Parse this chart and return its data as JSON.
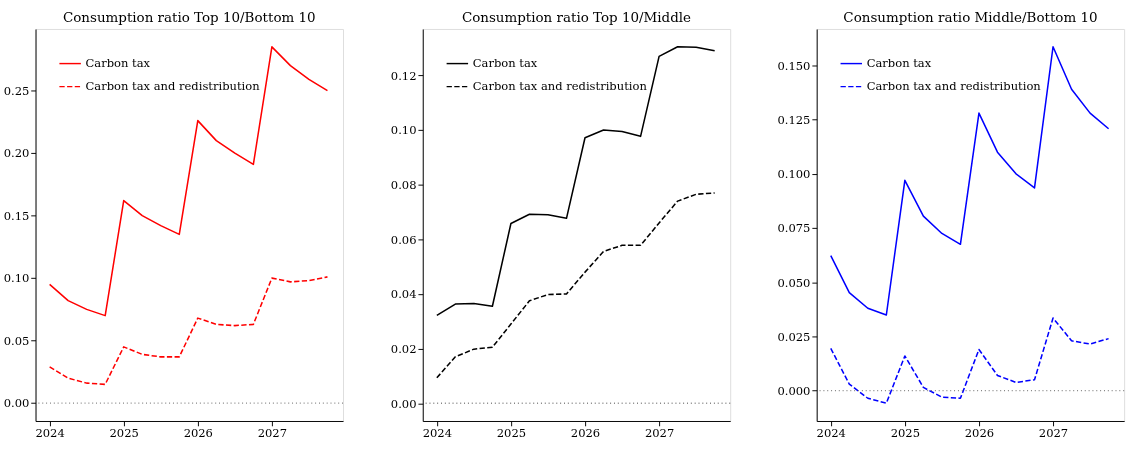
{
  "chart_data": [
    {
      "type": "line",
      "title": "Consumption ratio Top 10/Bottom 10",
      "legend": "top left",
      "x": [
        2024,
        2024.25,
        2024.5,
        2024.75,
        2025,
        2025.25,
        2025.5,
        2025.75,
        2026,
        2026.25,
        2026.5,
        2026.75,
        2027,
        2027.25,
        2027.5,
        2027.75
      ],
      "series": [
        {
          "name": "Carbon tax",
          "color": "#ff0000",
          "line_style": "solid",
          "values": [
            0.095,
            0.082,
            0.075,
            0.07,
            0.162,
            0.15,
            0.142,
            0.135,
            0.226,
            0.21,
            0.2,
            0.191,
            0.285,
            0.27,
            0.259,
            0.25
          ]
        },
        {
          "name": "Carbon tax and redistribution",
          "color": "#ff0000",
          "line_style": "dashed",
          "values": [
            0.029,
            0.02,
            0.016,
            0.015,
            0.045,
            0.039,
            0.037,
            0.037,
            0.068,
            0.063,
            0.062,
            0.063,
            0.1,
            0.097,
            0.098,
            0.101
          ]
        }
      ],
      "ref_lines": [
        {
          "axis": "y",
          "value": 0,
          "color": "#808080",
          "line_style": "dotted"
        }
      ],
      "xlim": [
        2023.81,
        2027.96
      ],
      "xticks": [
        2024,
        2025,
        2026,
        2027
      ],
      "ylim": [
        -0.0143,
        0.2993
      ],
      "yticks": [
        {
          "value": 0,
          "label": "0.00"
        },
        {
          "value": 0.05,
          "label": "0.05"
        },
        {
          "value": 0.1,
          "label": "0.10"
        },
        {
          "value": 0.15,
          "label": "0.15"
        },
        {
          "value": 0.2,
          "label": "0.20"
        },
        {
          "value": 0.25,
          "label": "0.25"
        }
      ]
    },
    {
      "type": "line",
      "title": "Consumption ratio Top 10/Middle",
      "legend": "top left",
      "x": [
        2024,
        2024.25,
        2024.5,
        2024.75,
        2025,
        2025.25,
        2025.5,
        2025.75,
        2026,
        2026.25,
        2026.5,
        2026.75,
        2027,
        2027.25,
        2027.5,
        2027.75
      ],
      "series": [
        {
          "name": "Carbon tax",
          "color": "#000000",
          "line_style": "solid",
          "values": [
            0.0322,
            0.0363,
            0.0365,
            0.0355,
            0.0658,
            0.0692,
            0.069,
            0.0677,
            0.0972,
            0.1,
            0.0995,
            0.0977,
            0.127,
            0.1305,
            0.1303,
            0.129
          ]
        },
        {
          "name": "Carbon tax and redistribution",
          "color": "#000000",
          "line_style": "dashed",
          "values": [
            0.0093,
            0.017,
            0.0198,
            0.0205,
            0.029,
            0.0375,
            0.0398,
            0.04,
            0.048,
            0.0556,
            0.0578,
            0.0578,
            0.066,
            0.074,
            0.0765,
            0.077
          ]
        }
      ],
      "ref_lines": [
        {
          "axis": "y",
          "value": 0,
          "color": "#808080",
          "line_style": "dotted"
        }
      ],
      "xlim": [
        2023.81,
        2027.96
      ],
      "xticks": [
        2024,
        2025,
        2026,
        2027
      ],
      "ylim": [
        -0.0065,
        0.137
      ],
      "yticks": [
        {
          "value": 0,
          "label": "0.00"
        },
        {
          "value": 0.02,
          "label": "0.02"
        },
        {
          "value": 0.04,
          "label": "0.04"
        },
        {
          "value": 0.06,
          "label": "0.06"
        },
        {
          "value": 0.08,
          "label": "0.08"
        },
        {
          "value": 0.1,
          "label": "0.10"
        },
        {
          "value": 0.12,
          "label": "0.12"
        }
      ]
    },
    {
      "type": "line",
      "title": "Consumption ratio Middle/Bottom 10",
      "legend": "top left",
      "x": [
        2024,
        2024.25,
        2024.5,
        2024.75,
        2025,
        2025.25,
        2025.5,
        2025.75,
        2026,
        2026.25,
        2026.5,
        2026.75,
        2027,
        2027.25,
        2027.5,
        2027.75
      ],
      "series": [
        {
          "name": "Carbon tax",
          "color": "#0000ff",
          "line_style": "solid",
          "values": [
            0.0623,
            0.0452,
            0.038,
            0.0349,
            0.097,
            0.0805,
            0.0725,
            0.0675,
            0.128,
            0.11,
            0.1,
            0.0935,
            0.1586,
            0.139,
            0.128,
            0.1208
          ]
        },
        {
          "name": "Carbon tax and redistribution",
          "color": "#0000ff",
          "line_style": "dashed",
          "values": [
            0.0195,
            0.003,
            -0.0035,
            -0.0058,
            0.016,
            0.0015,
            -0.003,
            -0.0035,
            0.019,
            0.007,
            0.0038,
            0.005,
            0.0335,
            0.023,
            0.0215,
            0.024
          ]
        }
      ],
      "ref_lines": [
        {
          "axis": "y",
          "value": 0,
          "color": "#808080",
          "line_style": "dotted"
        }
      ],
      "xlim": [
        2023.81,
        2027.96
      ],
      "xticks": [
        2024,
        2025,
        2026,
        2027
      ],
      "ylim": [
        -0.014,
        0.1668
      ],
      "yticks": [
        {
          "value": 0,
          "label": "0.000"
        },
        {
          "value": 0.025,
          "label": "0.025"
        },
        {
          "value": 0.05,
          "label": "0.050"
        },
        {
          "value": 0.075,
          "label": "0.075"
        },
        {
          "value": 0.1,
          "label": "0.100"
        },
        {
          "value": 0.125,
          "label": "0.125"
        },
        {
          "value": 0.15,
          "label": "0.150"
        }
      ]
    }
  ]
}
